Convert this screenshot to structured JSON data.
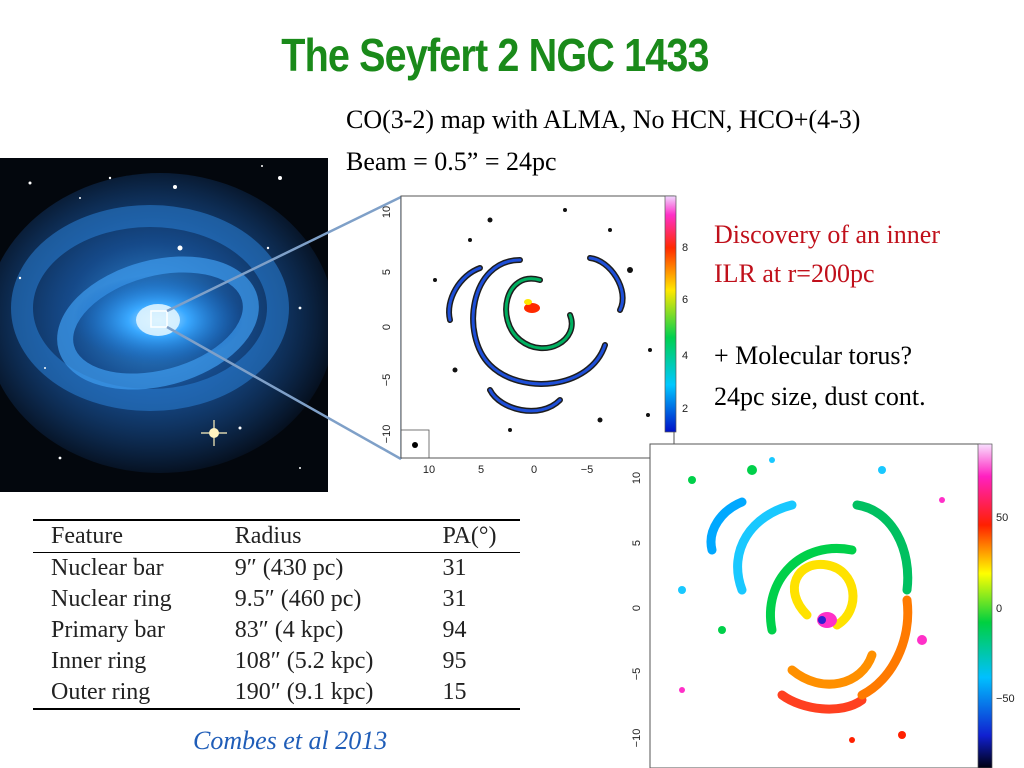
{
  "slide": {
    "title": "The Seyfert 2 NGC 1433"
  },
  "info": {
    "line1": "CO(3-2) map with ALMA, No HCN, HCO+(4-3)",
    "line2": "Beam = 0.5” = 24pc"
  },
  "notes": {
    "discovery_line1": "Discovery of an inner",
    "discovery_line2": "ILR at r=200pc",
    "torus_line1": "+ Molecular torus?",
    "torus_line2": "24pc size, dust cont."
  },
  "co_map": {
    "y_ticks": [
      "10",
      "5",
      "0",
      "−5",
      "−10"
    ],
    "x_ticks": [
      "10",
      "5",
      "0",
      "−5"
    ],
    "colorbar_ticks": [
      "8",
      "6",
      "4",
      "2"
    ]
  },
  "velocity_map": {
    "y_ticks": [
      "10",
      "5",
      "0",
      "−5",
      "−10"
    ],
    "colorbar_ticks": [
      "50",
      "0",
      "−50"
    ]
  },
  "table": {
    "headers": [
      "Feature",
      "Radius",
      "PA(°)"
    ],
    "rows": [
      [
        "Nuclear bar",
        "9″ (430 pc)",
        "31"
      ],
      [
        "Nuclear ring",
        "9.5″ (460 pc)",
        "31"
      ],
      [
        "Primary bar",
        "83″ (4 kpc)",
        "94"
      ],
      [
        "Inner ring",
        "108″ (5.2 kpc)",
        "95"
      ],
      [
        "Outer ring",
        "190″ (9.1 kpc)",
        "15"
      ]
    ]
  },
  "citation": "Combes et al 2013"
}
